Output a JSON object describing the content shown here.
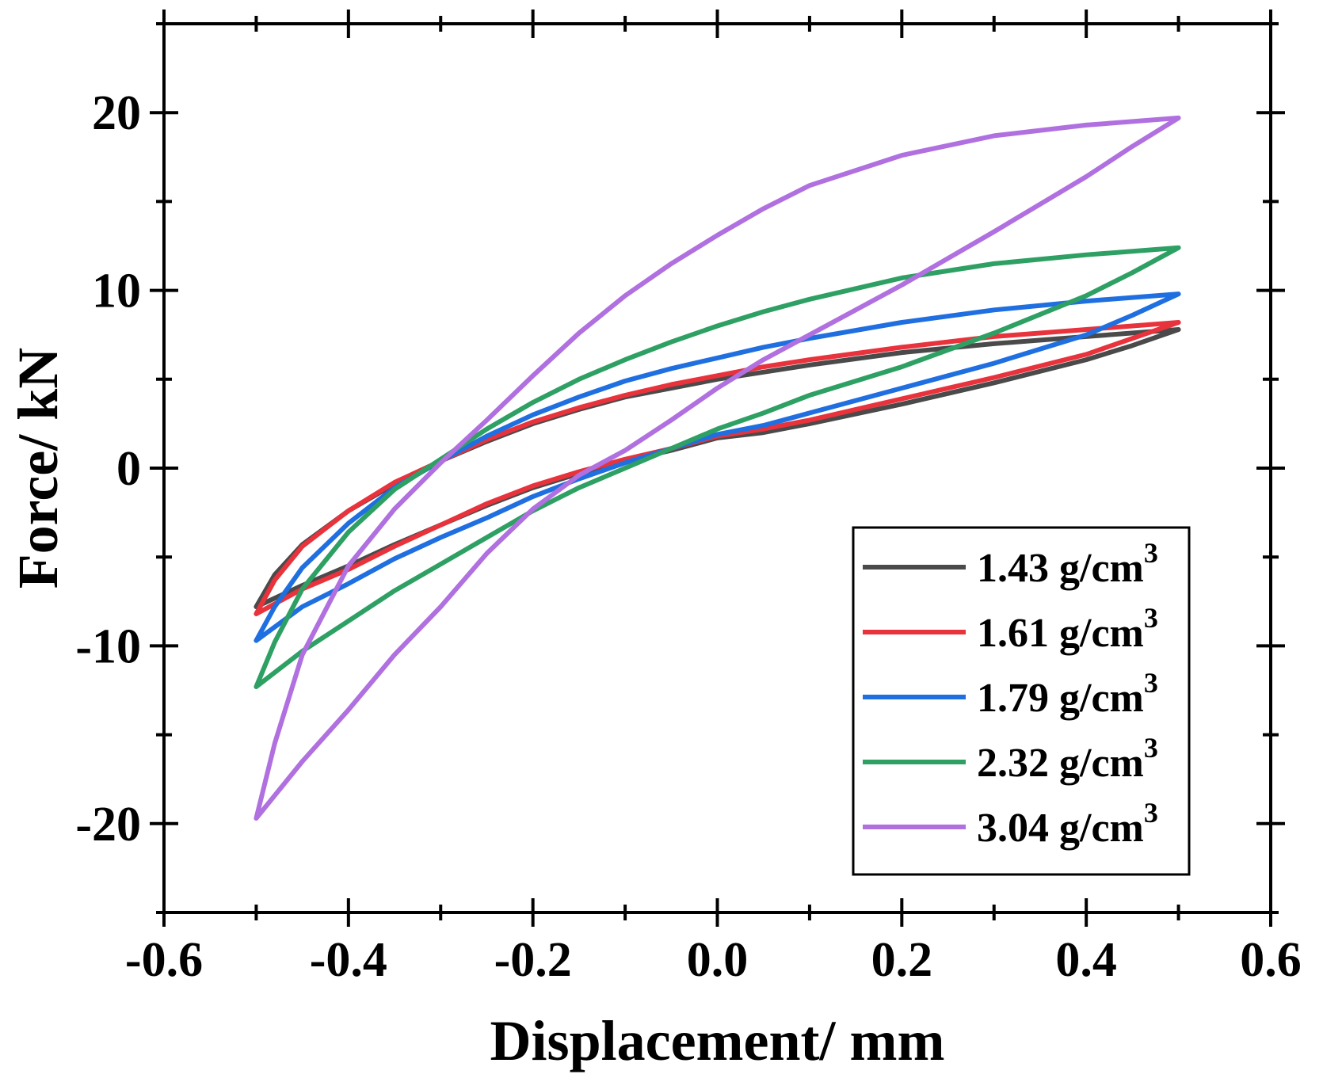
{
  "chart_data": {
    "type": "line",
    "title": "",
    "xlabel": "Displacement/ mm",
    "ylabel": "Force/ kN",
    "xlim": [
      -0.6,
      0.6
    ],
    "ylim": [
      -25,
      25
    ],
    "xticks": [
      -0.6,
      -0.4,
      -0.2,
      0.0,
      0.2,
      0.4,
      0.6
    ],
    "xtick_labels": [
      "-0.6",
      "-0.4",
      "-0.2",
      "0.0",
      "0.2",
      "0.4",
      "0.6"
    ],
    "yticks": [
      -20,
      -10,
      0,
      10,
      20
    ],
    "ytick_labels": [
      "-20",
      "-10",
      "0",
      "10",
      "20"
    ],
    "legend_position": "bottom-right",
    "series": [
      {
        "name": "1.43 g/cm",
        "superscript": "3",
        "color": "#4a4a4a",
        "x": [
          -0.5,
          -0.48,
          -0.45,
          -0.4,
          -0.35,
          -0.3,
          -0.25,
          -0.2,
          -0.15,
          -0.1,
          -0.05,
          0.0,
          0.05,
          0.1,
          0.2,
          0.3,
          0.4,
          0.5,
          0.45,
          0.4,
          0.3,
          0.2,
          0.1,
          0.05,
          0.0,
          -0.05,
          -0.1,
          -0.15,
          -0.2,
          -0.25,
          -0.3,
          -0.35,
          -0.4,
          -0.45,
          -0.5
        ],
        "y": [
          -7.8,
          -6.0,
          -4.3,
          -2.4,
          -0.9,
          0.4,
          1.5,
          2.5,
          3.3,
          4.0,
          4.5,
          5.0,
          5.4,
          5.8,
          6.5,
          7.0,
          7.4,
          7.8,
          6.9,
          6.1,
          4.8,
          3.6,
          2.5,
          2.0,
          1.7,
          1.0,
          0.4,
          -0.3,
          -1.1,
          -2.1,
          -3.2,
          -4.3,
          -5.5,
          -6.6,
          -7.8
        ]
      },
      {
        "name": "1.61 g/cm",
        "superscript": "3",
        "color": "#e8323c",
        "x": [
          -0.5,
          -0.48,
          -0.45,
          -0.4,
          -0.35,
          -0.3,
          -0.25,
          -0.2,
          -0.15,
          -0.1,
          -0.05,
          0.0,
          0.05,
          0.1,
          0.2,
          0.3,
          0.4,
          0.5,
          0.45,
          0.4,
          0.3,
          0.2,
          0.1,
          0.05,
          0.0,
          -0.05,
          -0.1,
          -0.15,
          -0.2,
          -0.25,
          -0.3,
          -0.35,
          -0.4,
          -0.45,
          -0.5
        ],
        "y": [
          -8.2,
          -6.3,
          -4.4,
          -2.4,
          -0.8,
          0.4,
          1.6,
          2.6,
          3.4,
          4.1,
          4.7,
          5.2,
          5.7,
          6.1,
          6.8,
          7.4,
          7.8,
          8.2,
          7.3,
          6.4,
          5.1,
          3.9,
          2.7,
          2.2,
          1.8,
          1.1,
          0.5,
          -0.2,
          -1.0,
          -2.0,
          -3.2,
          -4.4,
          -5.7,
          -6.8,
          -8.2
        ]
      },
      {
        "name": "1.79 g/cm",
        "superscript": "3",
        "color": "#1f6fe0",
        "x": [
          -0.5,
          -0.48,
          -0.45,
          -0.4,
          -0.35,
          -0.3,
          -0.25,
          -0.2,
          -0.15,
          -0.1,
          -0.05,
          0.0,
          0.05,
          0.1,
          0.2,
          0.3,
          0.4,
          0.5,
          0.45,
          0.4,
          0.3,
          0.2,
          0.1,
          0.05,
          0.0,
          -0.05,
          -0.1,
          -0.15,
          -0.2,
          -0.25,
          -0.3,
          -0.35,
          -0.4,
          -0.45,
          -0.5
        ],
        "y": [
          -9.7,
          -7.8,
          -5.6,
          -3.1,
          -1.1,
          0.4,
          1.8,
          3.0,
          4.0,
          4.9,
          5.6,
          6.2,
          6.8,
          7.3,
          8.2,
          8.9,
          9.4,
          9.8,
          8.6,
          7.5,
          5.9,
          4.5,
          3.1,
          2.4,
          1.9,
          1.1,
          0.3,
          -0.6,
          -1.6,
          -2.8,
          -3.9,
          -5.1,
          -6.5,
          -7.8,
          -9.7
        ]
      },
      {
        "name": "2.32 g/cm",
        "superscript": "3",
        "color": "#2ea063",
        "x": [
          -0.5,
          -0.48,
          -0.45,
          -0.4,
          -0.35,
          -0.3,
          -0.25,
          -0.2,
          -0.15,
          -0.1,
          -0.05,
          0.0,
          0.05,
          0.1,
          0.2,
          0.3,
          0.4,
          0.5,
          0.45,
          0.4,
          0.3,
          0.2,
          0.1,
          0.05,
          0.0,
          -0.05,
          -0.1,
          -0.15,
          -0.2,
          -0.25,
          -0.3,
          -0.35,
          -0.4,
          -0.45,
          -0.5
        ],
        "y": [
          -12.3,
          -9.8,
          -6.8,
          -3.6,
          -1.2,
          0.5,
          2.2,
          3.7,
          5.0,
          6.1,
          7.1,
          8.0,
          8.8,
          9.5,
          10.7,
          11.5,
          12.0,
          12.4,
          11.0,
          9.7,
          7.6,
          5.7,
          4.1,
          3.1,
          2.2,
          1.1,
          0.0,
          -1.1,
          -2.4,
          -3.9,
          -5.4,
          -6.9,
          -8.6,
          -10.3,
          -12.3
        ]
      },
      {
        "name": "3.04 g/cm",
        "superscript": "3",
        "color": "#b070e0",
        "x": [
          -0.5,
          -0.48,
          -0.45,
          -0.4,
          -0.35,
          -0.3,
          -0.25,
          -0.2,
          -0.15,
          -0.1,
          -0.05,
          0.0,
          0.05,
          0.1,
          0.2,
          0.3,
          0.4,
          0.5,
          0.45,
          0.4,
          0.3,
          0.2,
          0.1,
          0.05,
          0.0,
          -0.05,
          -0.1,
          -0.15,
          -0.2,
          -0.25,
          -0.3,
          -0.35,
          -0.4,
          -0.45,
          -0.5
        ],
        "y": [
          -19.7,
          -15.5,
          -10.5,
          -5.5,
          -2.3,
          0.3,
          2.7,
          5.2,
          7.6,
          9.7,
          11.5,
          13.1,
          14.6,
          15.9,
          17.6,
          18.7,
          19.3,
          19.7,
          18.1,
          16.4,
          13.3,
          10.3,
          7.5,
          6.1,
          4.5,
          2.7,
          1.0,
          -0.4,
          -2.3,
          -4.8,
          -7.8,
          -10.5,
          -13.6,
          -16.5,
          -19.7
        ]
      }
    ]
  }
}
